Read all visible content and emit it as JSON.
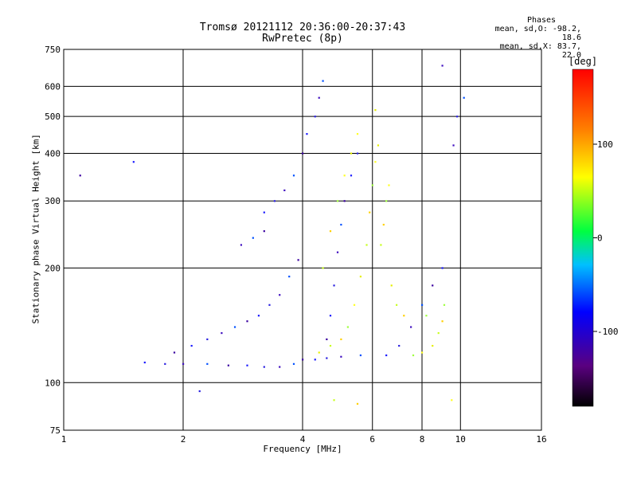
{
  "chart_data": {
    "type": "scatter",
    "title": "Tromsø 20121112 20:36:00-20:37:43",
    "subtitle": "RwPretec (8p)",
    "xlabel": "Frequency [MHz]",
    "ylabel": "Stationary phase Virtual Height [km]",
    "xscale": "log",
    "yscale": "log",
    "xlim": [
      1,
      16
    ],
    "ylim": [
      75,
      750
    ],
    "xticks": [
      1,
      2,
      4,
      6,
      8,
      10,
      16
    ],
    "yticks": [
      75,
      100,
      200,
      300,
      400,
      500,
      600,
      750
    ],
    "grid": true,
    "colorbar": {
      "label": "[deg]",
      "range": [
        -180,
        180
      ],
      "ticks": [
        100,
        0,
        -100
      ]
    },
    "annotation": {
      "header": "Phases",
      "line1": "mean, sd,O: -98.2, 18.6",
      "line2": "mean, sd,X:  83.7, 22.0"
    },
    "series": [
      {
        "name": "O",
        "points": [
          [
            1.6,
            113
          ],
          [
            1.8,
            112
          ],
          [
            2.0,
            112
          ],
          [
            2.3,
            112
          ],
          [
            2.6,
            111
          ],
          [
            2.9,
            111
          ],
          [
            3.2,
            110
          ],
          [
            3.5,
            110
          ],
          [
            3.8,
            112
          ],
          [
            4.0,
            115
          ],
          [
            4.3,
            115
          ],
          [
            4.6,
            116
          ],
          [
            5.0,
            117
          ],
          [
            5.6,
            118
          ],
          [
            1.9,
            120
          ],
          [
            2.1,
            125
          ],
          [
            2.3,
            130
          ],
          [
            2.5,
            135
          ],
          [
            2.7,
            140
          ],
          [
            2.9,
            145
          ],
          [
            3.1,
            150
          ],
          [
            3.3,
            160
          ],
          [
            3.5,
            170
          ],
          [
            3.7,
            190
          ],
          [
            3.9,
            210
          ],
          [
            3.2,
            280
          ],
          [
            3.4,
            300
          ],
          [
            3.6,
            320
          ],
          [
            3.8,
            350
          ],
          [
            4.0,
            400
          ],
          [
            4.1,
            450
          ],
          [
            4.3,
            500
          ],
          [
            4.4,
            560
          ],
          [
            4.5,
            620
          ],
          [
            4.6,
            130
          ],
          [
            4.7,
            150
          ],
          [
            4.8,
            180
          ],
          [
            4.9,
            220
          ],
          [
            5.0,
            260
          ],
          [
            5.1,
            300
          ],
          [
            5.3,
            350
          ],
          [
            5.5,
            400
          ],
          [
            2.8,
            230
          ],
          [
            3.0,
            240
          ],
          [
            3.2,
            250
          ],
          [
            6.5,
            118
          ],
          [
            7.0,
            125
          ],
          [
            7.5,
            140
          ],
          [
            8.0,
            160
          ],
          [
            8.5,
            180
          ],
          [
            9.0,
            200
          ],
          [
            9.8,
            500
          ],
          [
            9.6,
            420
          ],
          [
            10.2,
            560
          ],
          [
            1.1,
            350
          ],
          [
            1.5,
            380
          ],
          [
            2.2,
            95
          ],
          [
            9.0,
            680
          ]
        ]
      },
      {
        "name": "X",
        "points": [
          [
            4.4,
            120
          ],
          [
            4.7,
            125
          ],
          [
            5.0,
            130
          ],
          [
            5.2,
            140
          ],
          [
            5.4,
            160
          ],
          [
            5.6,
            190
          ],
          [
            5.8,
            230
          ],
          [
            5.9,
            280
          ],
          [
            6.0,
            330
          ],
          [
            6.1,
            380
          ],
          [
            6.2,
            420
          ],
          [
            4.5,
            200
          ],
          [
            4.7,
            250
          ],
          [
            4.9,
            300
          ],
          [
            5.1,
            350
          ],
          [
            5.3,
            400
          ],
          [
            6.3,
            230
          ],
          [
            6.4,
            260
          ],
          [
            6.5,
            300
          ],
          [
            6.6,
            330
          ],
          [
            6.7,
            180
          ],
          [
            6.9,
            160
          ],
          [
            7.2,
            150
          ],
          [
            7.6,
            118
          ],
          [
            8.0,
            120
          ],
          [
            8.5,
            125
          ],
          [
            8.8,
            135
          ],
          [
            9.0,
            145
          ],
          [
            9.1,
            160
          ],
          [
            5.5,
            450
          ],
          [
            6.1,
            520
          ],
          [
            4.8,
            90
          ],
          [
            5.5,
            88
          ],
          [
            8.2,
            150
          ],
          [
            9.5,
            90
          ]
        ]
      }
    ]
  }
}
